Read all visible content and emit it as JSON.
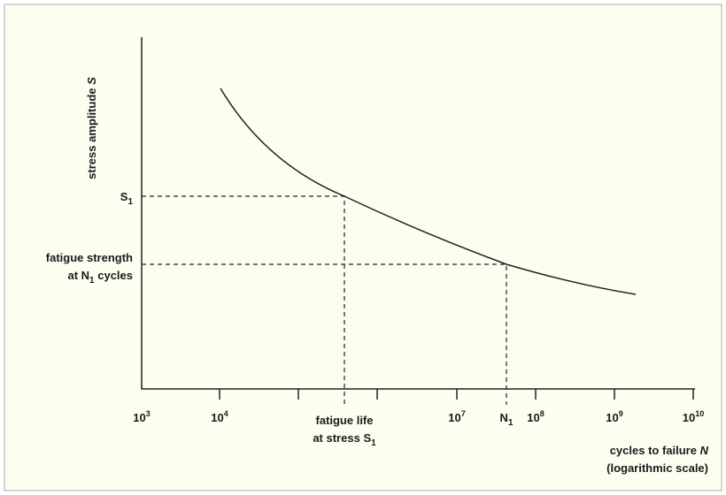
{
  "y_axis": {
    "label": {
      "text": "stress amplitude",
      "variable": "S"
    }
  },
  "x_axis": {
    "label": {
      "text": "cycles to failure",
      "variable": "N",
      "note": "(logarithmic scale)"
    },
    "ticks": [
      {
        "base": "10",
        "exponent": "3"
      },
      {
        "base": "10",
        "exponent": "4"
      },
      {
        "base": "10",
        "exponent": "7"
      },
      {
        "base": "10",
        "exponent": "8"
      },
      {
        "base": "10",
        "exponent": "9"
      },
      {
        "base": "10",
        "exponent": "10"
      }
    ]
  },
  "markers": {
    "stress_level": {
      "symbol": "S",
      "subscript": "1"
    },
    "fatigue_strength": {
      "line1": "fatigue strength",
      "line2_prefix": "at",
      "symbol": "N",
      "subscript": "1",
      "line2_suffix": "cycles"
    },
    "fatigue_life": {
      "line1": "fatigue life",
      "line2_prefix": "at stress",
      "symbol": "S",
      "subscript": "1"
    },
    "cycle_count": {
      "symbol": "N",
      "subscript": "1"
    }
  }
}
